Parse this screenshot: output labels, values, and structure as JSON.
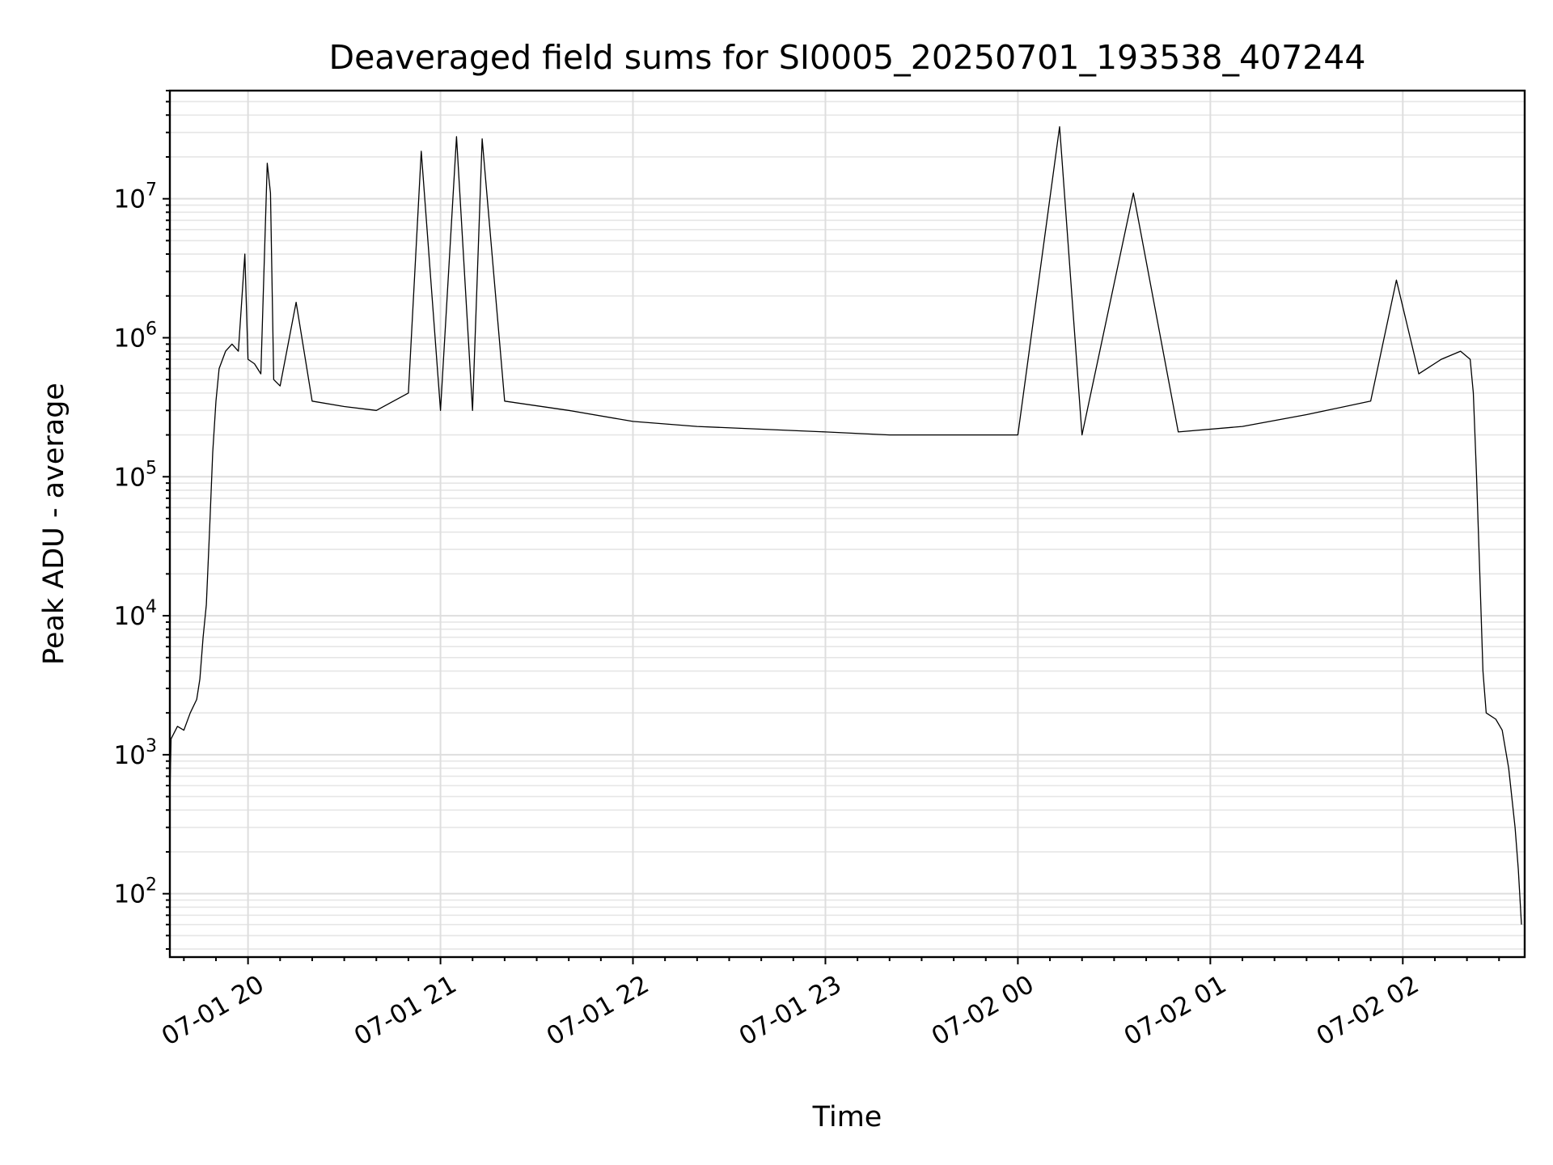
{
  "chart_data": {
    "type": "line",
    "title": "Deaveraged field sums for SI0005_20250701_193538_407244",
    "xlabel": "Time",
    "ylabel": "Peak ADU - average",
    "x_type": "datetime",
    "y_scale": "log",
    "xlim": [
      "2025-07-01T19:35:38",
      "2025-07-02T02:38:00"
    ],
    "ylim": [
      35,
      60000000
    ],
    "grid": "on (major and minor)",
    "legend": "none",
    "line_color": "#000000",
    "x_ticks": [
      {
        "t": "2025-07-01T20:00:00",
        "label": "07-01 20"
      },
      {
        "t": "2025-07-01T21:00:00",
        "label": "07-01 21"
      },
      {
        "t": "2025-07-01T22:00:00",
        "label": "07-01 22"
      },
      {
        "t": "2025-07-01T23:00:00",
        "label": "07-01 23"
      },
      {
        "t": "2025-07-02T00:00:00",
        "label": "07-02 00"
      },
      {
        "t": "2025-07-02T01:00:00",
        "label": "07-02 01"
      },
      {
        "t": "2025-07-02T02:00:00",
        "label": "07-02 02"
      }
    ],
    "y_ticks": [
      {
        "value": 100,
        "base": "10",
        "exp": "2"
      },
      {
        "value": 1000,
        "base": "10",
        "exp": "3"
      },
      {
        "value": 10000,
        "base": "10",
        "exp": "4"
      },
      {
        "value": 100000,
        "base": "10",
        "exp": "5"
      },
      {
        "value": 1000000,
        "base": "10",
        "exp": "6"
      },
      {
        "value": 10000000,
        "base": "10",
        "exp": "7"
      }
    ],
    "series": [
      {
        "points": [
          [
            "2025-07-01T19:35:38",
            500
          ],
          [
            "2025-07-01T19:36:00",
            1300
          ],
          [
            "2025-07-01T19:38:00",
            1600
          ],
          [
            "2025-07-01T19:40:00",
            1500
          ],
          [
            "2025-07-01T19:42:00",
            2000
          ],
          [
            "2025-07-01T19:44:00",
            2500
          ],
          [
            "2025-07-01T19:45:00",
            3500
          ],
          [
            "2025-07-01T19:46:00",
            7000
          ],
          [
            "2025-07-01T19:47:00",
            12000
          ],
          [
            "2025-07-01T19:48:00",
            40000
          ],
          [
            "2025-07-01T19:49:00",
            150000
          ],
          [
            "2025-07-01T19:50:00",
            350000
          ],
          [
            "2025-07-01T19:51:00",
            600000
          ],
          [
            "2025-07-01T19:53:00",
            800000
          ],
          [
            "2025-07-01T19:55:00",
            900000
          ],
          [
            "2025-07-01T19:57:00",
            800000
          ],
          [
            "2025-07-01T19:59:00",
            4000000
          ],
          [
            "2025-07-01T20:00:00",
            700000
          ],
          [
            "2025-07-01T20:02:00",
            650000
          ],
          [
            "2025-07-01T20:04:00",
            550000
          ],
          [
            "2025-07-01T20:06:00",
            18000000
          ],
          [
            "2025-07-01T20:07:00",
            11000000
          ],
          [
            "2025-07-01T20:08:00",
            500000
          ],
          [
            "2025-07-01T20:10:00",
            450000
          ],
          [
            "2025-07-01T20:15:00",
            1800000
          ],
          [
            "2025-07-01T20:20:00",
            350000
          ],
          [
            "2025-07-01T20:30:00",
            320000
          ],
          [
            "2025-07-01T20:40:00",
            300000
          ],
          [
            "2025-07-01T20:50:00",
            400000
          ],
          [
            "2025-07-01T20:54:00",
            22000000
          ],
          [
            "2025-07-01T21:00:00",
            300000
          ],
          [
            "2025-07-01T21:05:00",
            28000000
          ],
          [
            "2025-07-01T21:10:00",
            300000
          ],
          [
            "2025-07-01T21:13:00",
            27000000
          ],
          [
            "2025-07-01T21:20:00",
            350000
          ],
          [
            "2025-07-01T21:40:00",
            300000
          ],
          [
            "2025-07-01T22:00:00",
            250000
          ],
          [
            "2025-07-01T22:20:00",
            230000
          ],
          [
            "2025-07-01T22:40:00",
            220000
          ],
          [
            "2025-07-01T23:00:00",
            210000
          ],
          [
            "2025-07-01T23:20:00",
            200000
          ],
          [
            "2025-07-01T23:40:00",
            200000
          ],
          [
            "2025-07-02T00:00:00",
            200000
          ],
          [
            "2025-07-02T00:13:00",
            33000000
          ],
          [
            "2025-07-02T00:20:00",
            200000
          ],
          [
            "2025-07-02T00:36:00",
            11000000
          ],
          [
            "2025-07-02T00:50:00",
            210000
          ],
          [
            "2025-07-02T01:10:00",
            230000
          ],
          [
            "2025-07-02T01:30:00",
            280000
          ],
          [
            "2025-07-02T01:50:00",
            350000
          ],
          [
            "2025-07-02T01:58:00",
            2600000
          ],
          [
            "2025-07-02T02:05:00",
            550000
          ],
          [
            "2025-07-02T02:12:00",
            700000
          ],
          [
            "2025-07-02T02:18:00",
            800000
          ],
          [
            "2025-07-02T02:21:00",
            700000
          ],
          [
            "2025-07-02T02:22:00",
            400000
          ],
          [
            "2025-07-02T02:23:00",
            100000
          ],
          [
            "2025-07-02T02:24:00",
            20000
          ],
          [
            "2025-07-02T02:25:00",
            4000
          ],
          [
            "2025-07-02T02:26:00",
            2000
          ],
          [
            "2025-07-02T02:29:00",
            1800
          ],
          [
            "2025-07-02T02:31:00",
            1500
          ],
          [
            "2025-07-02T02:33:00",
            800
          ],
          [
            "2025-07-02T02:35:00",
            300
          ],
          [
            "2025-07-02T02:36:00",
            150
          ],
          [
            "2025-07-02T02:37:00",
            60
          ]
        ]
      }
    ]
  }
}
